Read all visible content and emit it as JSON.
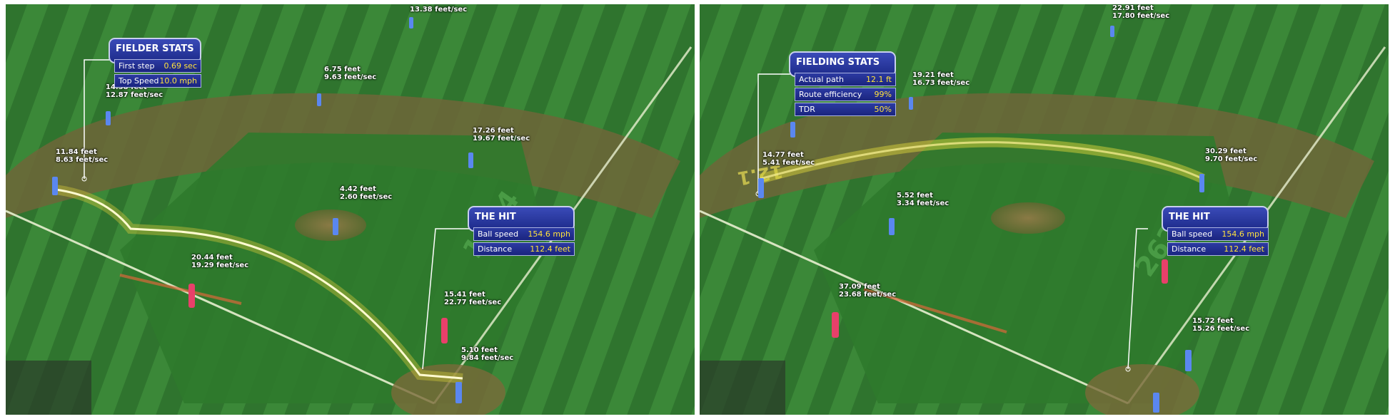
{
  "left": {
    "fielder_stats": {
      "title": "FIELDER STATS",
      "rows": [
        {
          "label": "First step",
          "value": "0.69 sec"
        },
        {
          "label": "Top Speed",
          "value": "10.0 mph"
        }
      ]
    },
    "the_hit": {
      "title": "THE HIT",
      "rows": [
        {
          "label": "Ball speed",
          "value": "154.6 mph"
        },
        {
          "label": "Distance",
          "value": "112.4 feet"
        }
      ]
    },
    "players": [
      {
        "feet": "13.38 feet/sec",
        "speed": ""
      },
      {
        "feet": "6.75 feet",
        "speed": "9.63 feet/sec"
      },
      {
        "feet": "14.38 feet",
        "speed": "12.87 feet/sec"
      },
      {
        "feet": "17.26 feet",
        "speed": "19.67 feet/sec"
      },
      {
        "feet": "11.84 feet",
        "speed": "8.63 feet/sec"
      },
      {
        "feet": "4.42 feet",
        "speed": "2.60 feet/sec"
      },
      {
        "feet": "20.44 feet",
        "speed": "19.29 feet/sec"
      },
      {
        "feet": "15.41 feet",
        "speed": "22.77 feet/sec"
      },
      {
        "feet": "5.10 feet",
        "speed": "9.84 feet/sec"
      }
    ],
    "field_number": "1664"
  },
  "right": {
    "fielding_stats": {
      "title": "FIELDING STATS",
      "rows": [
        {
          "label": "Actual path",
          "value": "12.1 ft"
        },
        {
          "label": "Route efficiency",
          "value": "99%"
        },
        {
          "label": "TDR",
          "value": "50%"
        }
      ]
    },
    "the_hit": {
      "title": "THE HIT",
      "rows": [
        {
          "label": "Ball speed",
          "value": "154.6 mph"
        },
        {
          "label": "Distance",
          "value": "112.4 feet"
        }
      ]
    },
    "players": [
      {
        "feet": "22.91 feet",
        "speed": "17.80 feet/sec"
      },
      {
        "feet": "19.21 feet",
        "speed": "16.73 feet/sec"
      },
      {
        "feet": "14.77 feet",
        "speed": "5.41 feet/sec"
      },
      {
        "feet": "30.29 feet",
        "speed": "9.70 feet/sec"
      },
      {
        "feet": "5.52 feet",
        "speed": "3.34 feet/sec"
      },
      {
        "feet": "37.09 feet",
        "speed": "23.68 feet/sec"
      },
      {
        "feet": "15.72 feet",
        "speed": "15.26 feet/sec"
      }
    ],
    "field_number": "2624",
    "route_number": "12.1"
  },
  "colors": {
    "grass_dark": "#2a6b2a",
    "grass_light": "#3d8a3a",
    "dirt": "#7a6a3a",
    "panel_blue": "#2233a0",
    "value_yellow": "#ffe23d",
    "fielder_blue": "#4d7ff0",
    "runner_pink": "#e8406a"
  }
}
